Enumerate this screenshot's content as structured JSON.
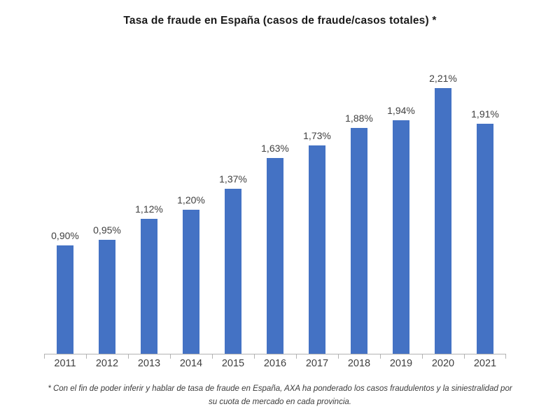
{
  "chart_data": {
    "type": "bar",
    "title": "Tasa de fraude en España (casos de fraude/casos totales) *",
    "categories": [
      "2011",
      "2012",
      "2013",
      "2014",
      "2015",
      "2016",
      "2017",
      "2018",
      "2019",
      "2020",
      "2021"
    ],
    "values": [
      0.9,
      0.95,
      1.12,
      1.2,
      1.37,
      1.63,
      1.73,
      1.88,
      1.94,
      2.21,
      1.91
    ],
    "value_labels": [
      "0,90%",
      "0,95%",
      "1,12%",
      "1,20%",
      "1,37%",
      "1,63%",
      "1,73%",
      "1,88%",
      "1,94%",
      "2,21%",
      "1,91%"
    ],
    "xlabel": "",
    "ylabel": "",
    "ylim": [
      0,
      2.4
    ],
    "grid": false,
    "legend": false,
    "bar_color": "#4472C4",
    "label_color": "#404040",
    "axis_color": "#b3b3b3"
  },
  "footnote": {
    "line1": "* Con el fin de poder inferir y hablar de tasa de fraude en España, AXA ha ponderado los casos fraudulentos y la siniestralidad por",
    "line2": "su cuota de mercado en cada provincia."
  }
}
